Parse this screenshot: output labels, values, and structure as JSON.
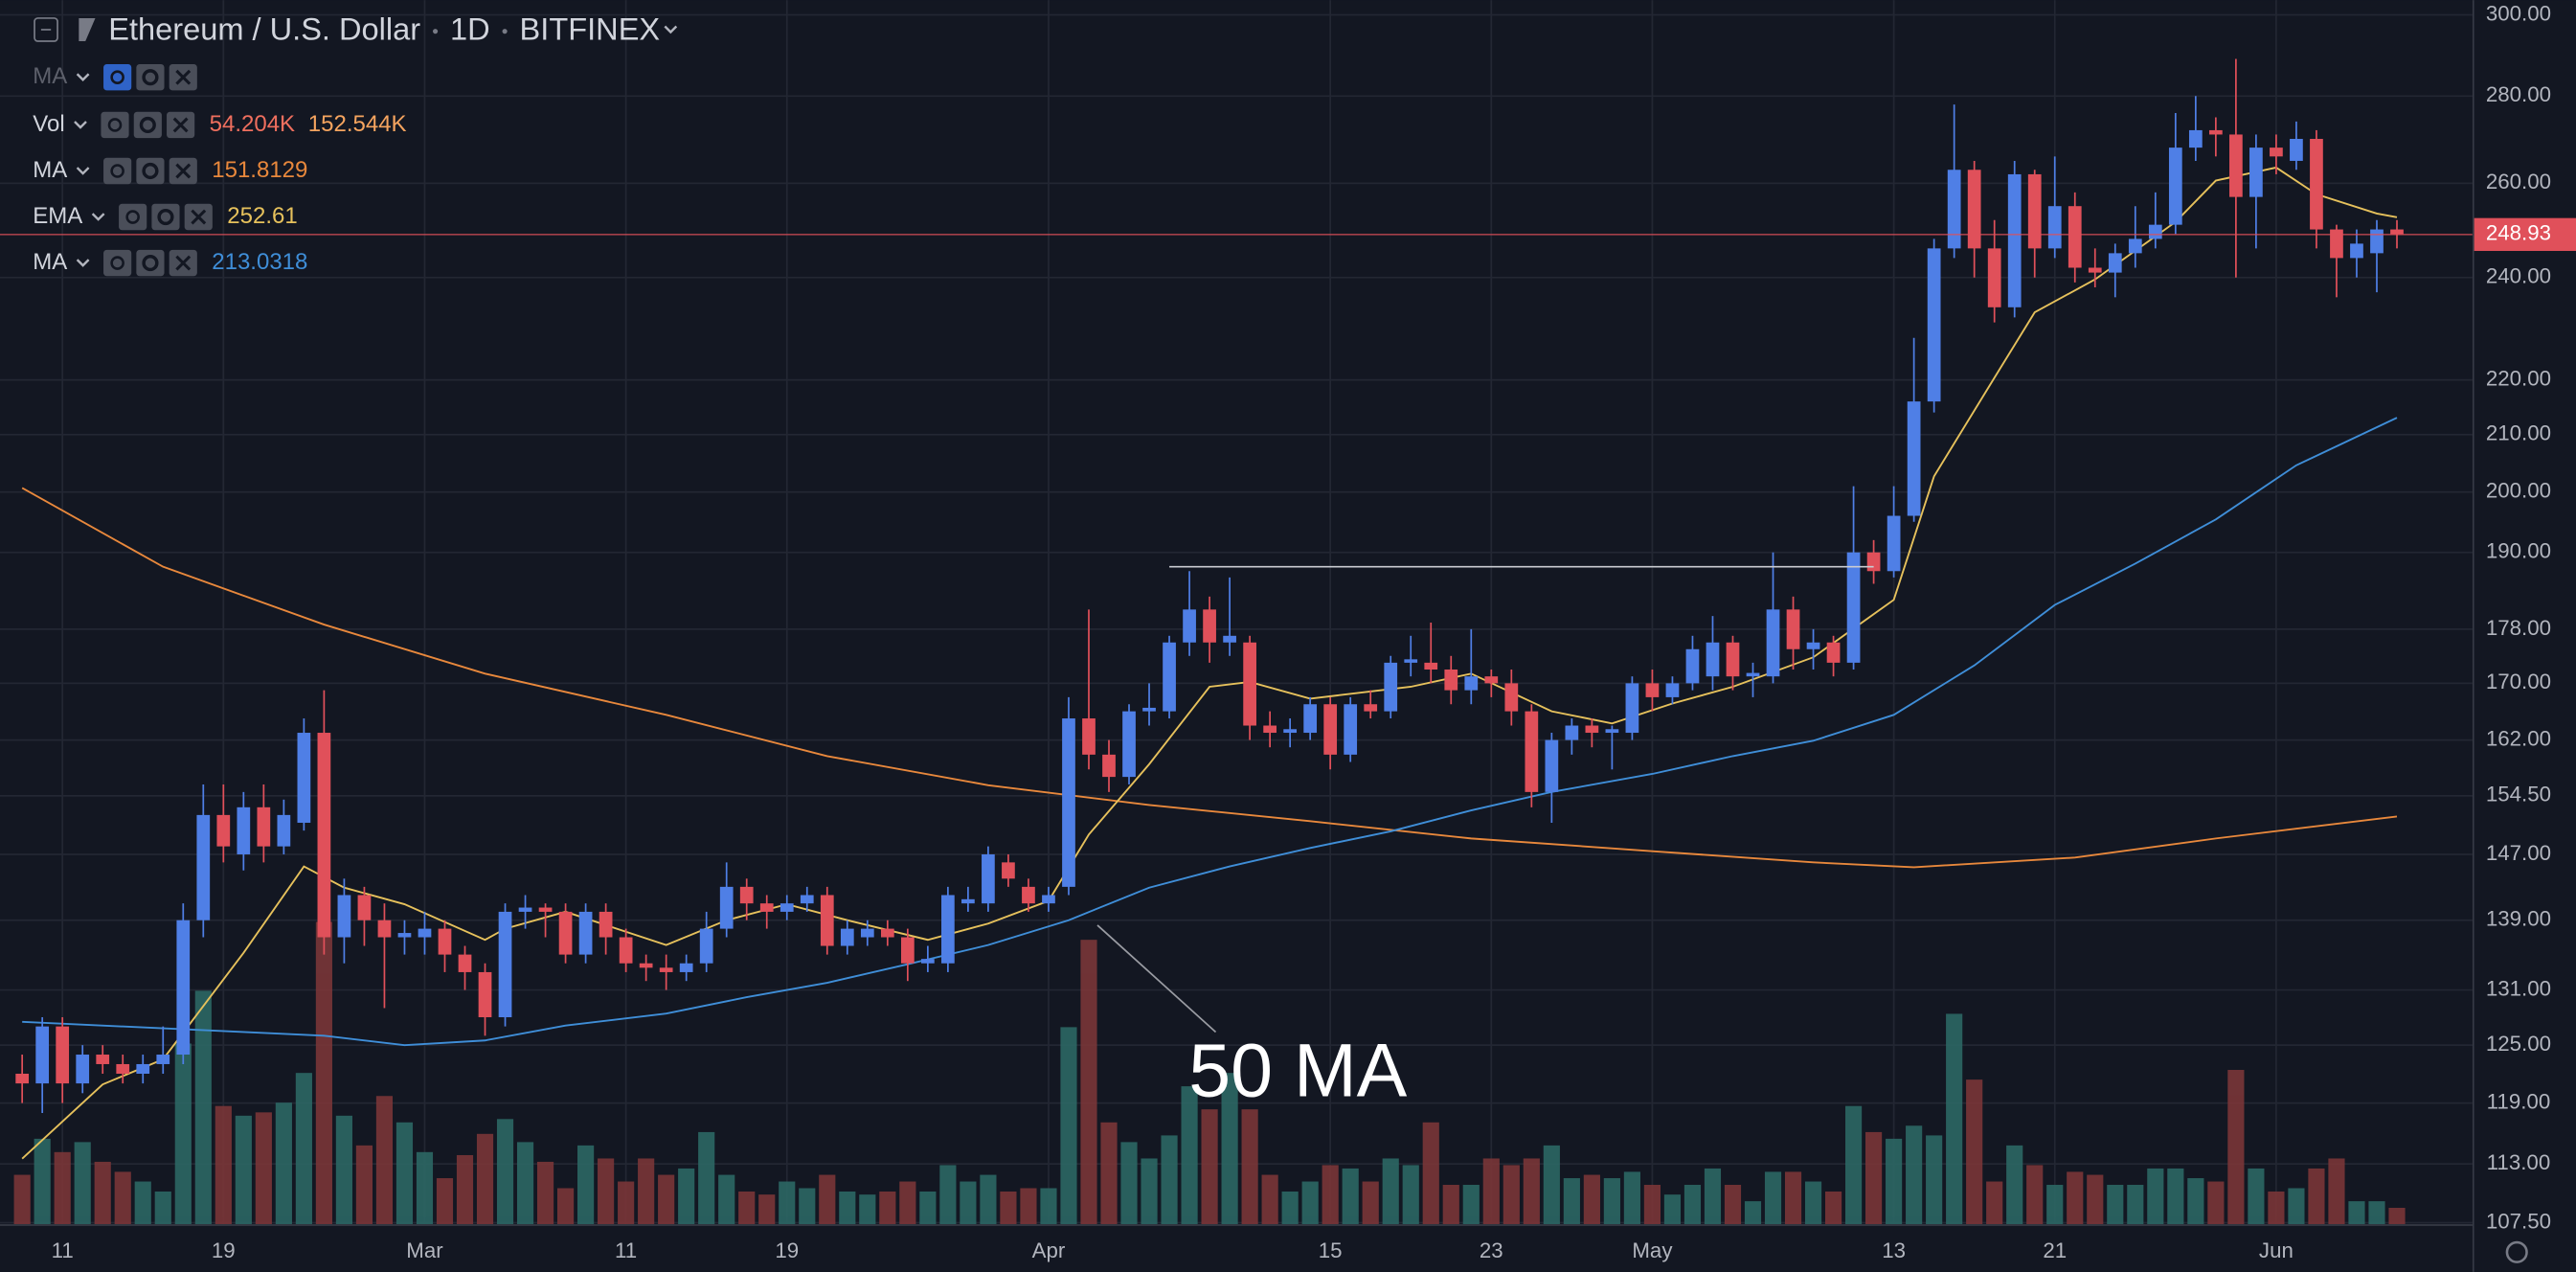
{
  "chart_data": {
    "type": "candlestick",
    "title": "Ethereum / U.S. Dollar",
    "interval": "1D",
    "exchange": "BITFINEX",
    "log_scale": true,
    "grid": true,
    "up_color": "#4f7fe6",
    "down_color": "#e0505a",
    "categories": [
      null,
      null,
      "11",
      null,
      null,
      null,
      null,
      null,
      null,
      null,
      "19",
      null,
      null,
      null,
      null,
      null,
      null,
      null,
      null,
      null,
      "Mar",
      null,
      null,
      null,
      null,
      null,
      null,
      null,
      null,
      null,
      "11",
      null,
      null,
      null,
      null,
      null,
      null,
      null,
      "19",
      null,
      null,
      null,
      null,
      null,
      null,
      null,
      null,
      null,
      null,
      null,
      null,
      "Apr",
      null,
      null,
      null,
      null,
      null,
      null,
      null,
      null,
      null,
      null,
      null,
      null,
      null,
      "15",
      null,
      null,
      null,
      null,
      null,
      null,
      null,
      "23",
      null,
      null,
      null,
      null,
      null,
      null,
      null,
      "May",
      null,
      null,
      null,
      null,
      null,
      null,
      null,
      null,
      null,
      null,
      null,
      "13",
      null,
      null,
      null,
      null,
      null,
      null,
      null,
      "21",
      null,
      null,
      null,
      null,
      null,
      null,
      null,
      null,
      null,
      null,
      "Jun",
      null,
      null,
      null,
      null,
      null,
      null
    ],
    "open": [
      122,
      121,
      127,
      121,
      124,
      123,
      122,
      123,
      124,
      139,
      152,
      147,
      153,
      148,
      151,
      163,
      137,
      142,
      139,
      137,
      137,
      138,
      135,
      133,
      128,
      140,
      140.5,
      140,
      135,
      140,
      137,
      134,
      133.5,
      133,
      134,
      138,
      143,
      141,
      140,
      141,
      142,
      136,
      137,
      138,
      137,
      134,
      134,
      141,
      141,
      146,
      143,
      141,
      143,
      165,
      160,
      157,
      166,
      166,
      176,
      181,
      176,
      176,
      164,
      163,
      163,
      167,
      160,
      167,
      166,
      173,
      173,
      172,
      169,
      171,
      170,
      166,
      155,
      162,
      164,
      163,
      163,
      170,
      168,
      170,
      171,
      176,
      171,
      171,
      181,
      175,
      176,
      173,
      190,
      187,
      196,
      216,
      246,
      263,
      246,
      234,
      262,
      246,
      255,
      242,
      241,
      245,
      248,
      251,
      268,
      272,
      271,
      257,
      268,
      265,
      270,
      250,
      244,
      245,
      250
    ],
    "high": [
      124,
      128,
      128,
      125,
      125,
      124,
      124,
      127,
      141,
      156,
      156,
      155,
      156,
      154,
      165,
      169,
      144,
      143,
      141,
      139,
      140,
      139,
      136,
      134,
      141,
      142,
      141,
      141,
      141,
      141,
      138,
      135,
      135,
      135,
      140,
      146,
      144,
      142,
      142,
      143,
      143,
      139,
      139,
      139,
      138,
      136,
      143,
      143,
      148,
      147,
      144,
      143,
      168,
      181,
      162,
      167,
      170,
      177,
      187,
      183,
      186,
      177,
      166,
      165,
      168,
      168,
      168,
      169,
      174,
      177,
      179,
      174,
      178,
      172,
      172,
      167,
      163,
      165,
      165,
      164,
      171,
      172,
      171,
      177,
      180,
      177,
      173,
      190,
      183,
      178,
      177,
      201,
      192,
      201,
      228,
      248,
      278,
      265,
      252,
      265,
      263,
      266,
      258,
      246,
      247,
      255,
      258,
      276,
      280,
      275,
      289,
      271,
      271,
      274,
      272,
      251,
      250,
      252,
      252
    ],
    "low": [
      119,
      118,
      119,
      120,
      122,
      121,
      121,
      122,
      123,
      137,
      146,
      145,
      146,
      147,
      150,
      135,
      134,
      136,
      129,
      135,
      135,
      133,
      131,
      126,
      127,
      138,
      137,
      134,
      134,
      135,
      133,
      132,
      131,
      132,
      133,
      137,
      139,
      138,
      139,
      140,
      135,
      135,
      136,
      136,
      132,
      133,
      133,
      140,
      140,
      143,
      140,
      140,
      142,
      158,
      155,
      156,
      164,
      165,
      174,
      173,
      174,
      162,
      161,
      161,
      162,
      158,
      159,
      165,
      165,
      171,
      170,
      167,
      167,
      168,
      164,
      153,
      151,
      160,
      161,
      158,
      162,
      166,
      167,
      169,
      169,
      169,
      168,
      170,
      172,
      172,
      171,
      172,
      185,
      186,
      195,
      214,
      244,
      240,
      231,
      232,
      240,
      244,
      239,
      238,
      236,
      242,
      246,
      249,
      265,
      266,
      240,
      246,
      262,
      263,
      246,
      236,
      240,
      237,
      246
    ],
    "close": [
      121,
      127,
      121,
      124,
      123,
      122,
      123,
      124,
      139,
      152,
      148,
      153,
      148,
      152,
      163,
      137,
      142,
      139,
      137,
      137.5,
      138,
      135,
      133,
      128,
      140,
      140.5,
      140,
      135,
      140,
      137,
      134,
      133.5,
      133,
      134,
      138,
      143,
      141,
      140,
      141,
      142,
      136,
      138,
      138,
      137,
      134,
      134.5,
      142,
      141.5,
      147,
      144,
      141,
      142,
      165,
      160,
      157,
      166,
      166.5,
      176,
      181,
      176,
      177,
      164,
      163,
      163.5,
      167,
      160,
      167,
      166,
      173,
      173.5,
      172,
      169,
      171,
      170,
      166,
      155,
      162,
      164,
      163,
      163.5,
      170,
      168,
      170,
      175,
      176,
      171,
      171.5,
      181,
      175,
      176,
      173,
      190,
      187,
      196,
      216,
      246,
      263,
      246,
      234,
      262,
      246,
      255,
      242,
      241,
      245,
      248,
      251,
      268,
      272,
      271,
      257,
      268,
      266,
      270,
      250,
      244,
      247,
      250,
      248.93
    ],
    "volume": {
      "name": "Vol",
      "up_color": "#2c6764",
      "down_color": "#7a3638",
      "last_label": "54.204K",
      "ma_label": "152.544K",
      "values": [
        163,
        282,
        238,
        271,
        206,
        173,
        141,
        108,
        596,
        770,
        390,
        358,
        369,
        401,
        499,
        997,
        358,
        260,
        423,
        336,
        238,
        152,
        228,
        298,
        347,
        271,
        206,
        119,
        260,
        217,
        141,
        217,
        163,
        184,
        304,
        163,
        108,
        98,
        141,
        119,
        163,
        108,
        98,
        108,
        141,
        108,
        195,
        141,
        163,
        108,
        119,
        119,
        650,
        938,
        336,
        271,
        217,
        293,
        455,
        379,
        499,
        379,
        163,
        108,
        141,
        195,
        184,
        141,
        217,
        195,
        336,
        130,
        130,
        217,
        195,
        217,
        260,
        152,
        163,
        152,
        173,
        130,
        98,
        130,
        184,
        130,
        76,
        173,
        173,
        141,
        108,
        390,
        304,
        282,
        325,
        293,
        694,
        477,
        141,
        260,
        195,
        130,
        173,
        163,
        130,
        130,
        184,
        184,
        152,
        141,
        509,
        184,
        108,
        119,
        184,
        217,
        76,
        76,
        54.204
      ]
    },
    "hidden_indicator": "MA",
    "lines": [
      {
        "name": "MA",
        "color": "#e8883c",
        "x": [
          0,
          7,
          15,
          23,
          32,
          40,
          48,
          56,
          64,
          72,
          81,
          89,
          94,
          102,
          109,
          118
        ],
        "values": [
          200.7,
          187.7,
          178.7,
          171.4,
          165.5,
          159.8,
          155.9,
          153.3,
          151.2,
          149.0,
          147.4,
          146.0,
          145.4,
          146.6,
          149.0,
          151.8129
        ]
      },
      {
        "name": "EMA",
        "color": "#e6c15c",
        "x": [
          0,
          4,
          7,
          11,
          14,
          16,
          19,
          23,
          24,
          27,
          32,
          35,
          38,
          41,
          45,
          48,
          51,
          53,
          56,
          59,
          61,
          64,
          69,
          72,
          76,
          79,
          82,
          85,
          89,
          93,
          95,
          98,
          100,
          103,
          107,
          109,
          112,
          114,
          117,
          118
        ],
        "values": [
          113.5,
          120.9,
          123.5,
          135.2,
          145.5,
          142.9,
          140.9,
          136.7,
          138.0,
          140.0,
          136.1,
          139.0,
          140.9,
          139.0,
          136.7,
          138.6,
          141.3,
          149.5,
          158.7,
          169.5,
          170.2,
          167.8,
          169.5,
          171.4,
          166.0,
          164.3,
          167.1,
          169.5,
          173.8,
          182.5,
          202.7,
          220.4,
          233.0,
          239.6,
          251.6,
          260.6,
          263.5,
          257.6,
          253.4,
          252.61
        ]
      },
      {
        "name": "MA",
        "color": "#3f8ed8",
        "x": [
          0,
          7,
          11,
          15,
          19,
          23,
          27,
          32,
          36,
          40,
          44,
          48,
          52,
          56,
          60,
          64,
          68,
          72,
          76,
          81,
          85,
          89,
          93,
          97,
          101,
          105,
          109,
          113,
          118
        ],
        "values": [
          127.5,
          126.8,
          126.4,
          126.0,
          125.0,
          125.5,
          127.1,
          128.4,
          130.2,
          131.8,
          133.9,
          136.1,
          139.0,
          142.9,
          145.5,
          147.8,
          149.9,
          152.6,
          155.0,
          157.4,
          159.8,
          161.9,
          165.5,
          172.6,
          181.7,
          188.2,
          195.4,
          204.6,
          213.0318
        ]
      }
    ],
    "level": {
      "value": 187.7,
      "x": [
        57,
        92
      ]
    },
    "annotation": {
      "text": "50 MA"
    },
    "ylim": [
      107.35,
      303.8
    ],
    "yticks": [
      {
        "value": 107.5,
        "label": "107.50"
      },
      {
        "value": 113,
        "label": "113.00"
      },
      {
        "value": 119,
        "label": "119.00"
      },
      {
        "value": 125,
        "label": "125.00"
      },
      {
        "value": 131,
        "label": "131.00"
      },
      {
        "value": 139,
        "label": "139.00"
      },
      {
        "value": 147,
        "label": "147.00"
      },
      {
        "value": 154.5,
        "label": "154.50"
      },
      {
        "value": 162,
        "label": "162.00"
      },
      {
        "value": 170,
        "label": "170.00"
      },
      {
        "value": 178,
        "label": "178.00"
      },
      {
        "value": 190,
        "label": "190.00"
      },
      {
        "value": 200,
        "label": "200.00"
      },
      {
        "value": 210,
        "label": "210.00"
      },
      {
        "value": 220,
        "label": "220.00"
      },
      {
        "value": 240,
        "label": "240.00"
      },
      {
        "value": 260,
        "label": "260.00"
      },
      {
        "value": 280,
        "label": "280.00"
      },
      {
        "value": 300,
        "label": "300.00"
      }
    ]
  }
}
